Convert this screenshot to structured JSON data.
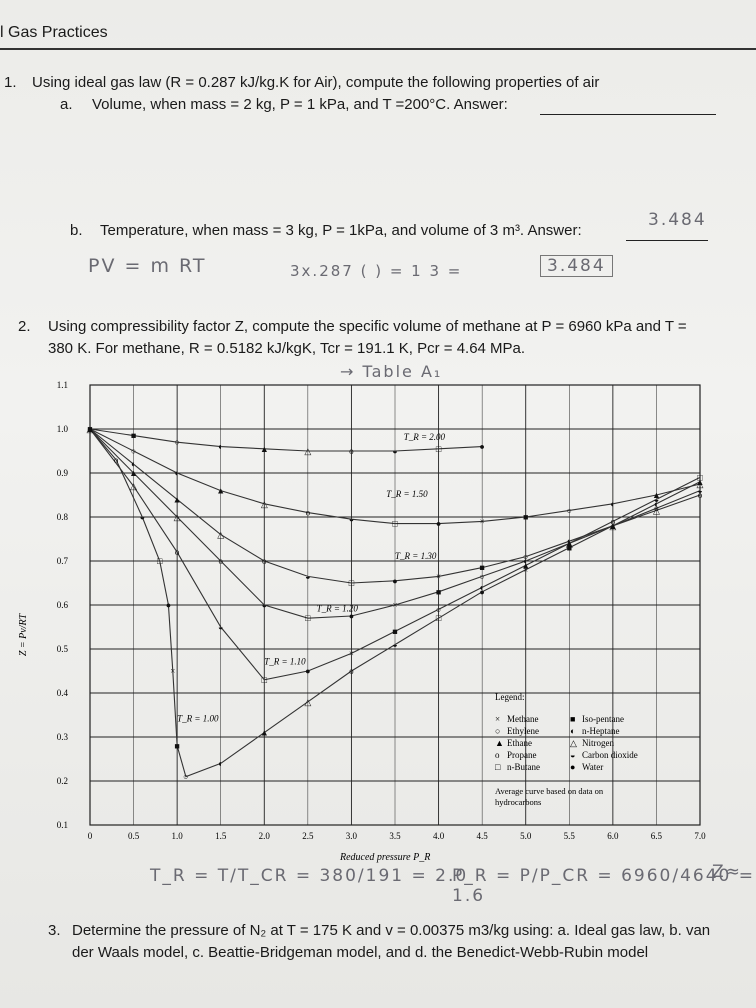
{
  "header": {
    "title": "l Gas Practices"
  },
  "q1": {
    "number": "1.",
    "text": "Using ideal gas law (R = 0.287 kJ/kg.K for Air), compute the following properties of air",
    "a": {
      "label": "a.",
      "text": "Volume, when mass = 2 kg, P = 1 kPa, and T =200°C. Answer:"
    },
    "b": {
      "label": "b.",
      "text": "Temperature, when mass = 3 kg, P = 1kPa, and volume of 3 m³. Answer:",
      "answer_handwritten": "3.484"
    },
    "work": {
      "line1": "PV = m RT",
      "line2": "3x.287 (   ) = 1 3 =",
      "boxed": "3.484"
    }
  },
  "q2": {
    "number": "2.",
    "line1": "Using compressibility factor Z, compute the specific volume of methane at P = 6960 kPa and T =",
    "line2": "380 K. For methane, R = 0.5182 kJ/kgK, Tcr = 191.1 K, Pcr = 4.64 MPa.",
    "note": "→ Table A₁"
  },
  "chart_data": {
    "type": "scatter",
    "xlabel": "Reduced pressure P_R",
    "ylabel": "Z = Pv/RT",
    "xlim": [
      0,
      7.0
    ],
    "ylim": [
      0.1,
      1.1
    ],
    "x_ticks": [
      "0",
      "0.5",
      "1.0",
      "1.5",
      "2.0",
      "2.5",
      "3.0",
      "3.5",
      "4.0",
      "4.5",
      "5.0",
      "5.5",
      "6.0",
      "6.5",
      "7.0"
    ],
    "y_ticks": [
      "1.1",
      "1.0",
      "0.9",
      "0.8",
      "0.7",
      "0.6",
      "0.5",
      "0.4",
      "0.3",
      "0.2",
      "0.1"
    ],
    "grid": true,
    "curve_labels": [
      "T_R = 2.00",
      "T_R = 1.50",
      "T_R = 1.30",
      "T_R = 1.20",
      "T_R = 1.10",
      "T_R = 1.00"
    ],
    "series": [
      {
        "name": "T_R = 2.00",
        "x": [
          0,
          0.5,
          1.0,
          1.5,
          2.0,
          2.5,
          3.0,
          3.5,
          4.0,
          4.5
        ],
        "y": [
          1.0,
          0.985,
          0.97,
          0.96,
          0.955,
          0.95,
          0.95,
          0.95,
          0.955,
          0.96
        ]
      },
      {
        "name": "T_R = 1.50",
        "x": [
          0,
          0.5,
          1.0,
          1.5,
          2.0,
          2.5,
          3.0,
          3.5,
          4.0,
          4.5,
          5.0,
          5.5,
          6.0,
          6.5,
          7.0
        ],
        "y": [
          1.0,
          0.95,
          0.9,
          0.86,
          0.83,
          0.81,
          0.795,
          0.785,
          0.785,
          0.79,
          0.8,
          0.815,
          0.83,
          0.85,
          0.875
        ]
      },
      {
        "name": "T_R = 1.30",
        "x": [
          0,
          0.5,
          1.0,
          1.5,
          2.0,
          2.5,
          3.0,
          3.5,
          4.0,
          4.5,
          5.0,
          5.5,
          6.0,
          6.5,
          7.0
        ],
        "y": [
          1.0,
          0.92,
          0.84,
          0.76,
          0.7,
          0.665,
          0.65,
          0.655,
          0.665,
          0.685,
          0.71,
          0.745,
          0.78,
          0.815,
          0.85
        ]
      },
      {
        "name": "T_R = 1.20",
        "x": [
          0,
          0.5,
          1.0,
          1.5,
          2.0,
          2.5,
          3.0,
          3.5,
          4.0,
          4.5,
          5.0,
          5.5,
          6.0,
          6.5,
          7.0
        ],
        "y": [
          1.0,
          0.9,
          0.8,
          0.7,
          0.6,
          0.57,
          0.575,
          0.6,
          0.63,
          0.665,
          0.7,
          0.74,
          0.78,
          0.82,
          0.86
        ]
      },
      {
        "name": "T_R = 1.10",
        "x": [
          0,
          0.5,
          1.0,
          1.5,
          2.0,
          2.5,
          3.0,
          3.5,
          4.0,
          4.5,
          5.0,
          5.5,
          6.0,
          6.5,
          7.0
        ],
        "y": [
          1.0,
          0.87,
          0.72,
          0.55,
          0.43,
          0.45,
          0.49,
          0.54,
          0.59,
          0.64,
          0.69,
          0.74,
          0.79,
          0.84,
          0.89
        ]
      },
      {
        "name": "T_R = 1.00",
        "x": [
          0,
          0.3,
          0.6,
          0.8,
          0.9,
          0.95,
          1.0,
          1.1,
          1.5,
          2.0,
          2.5,
          3.0,
          3.5,
          4.0,
          4.5,
          5.0,
          5.5,
          6.0,
          6.5,
          7.0
        ],
        "y": [
          1.0,
          0.93,
          0.8,
          0.7,
          0.6,
          0.45,
          0.28,
          0.21,
          0.24,
          0.31,
          0.38,
          0.45,
          0.51,
          0.57,
          0.63,
          0.68,
          0.73,
          0.78,
          0.83,
          0.88
        ]
      }
    ],
    "legend": {
      "title": "Legend:",
      "items": [
        {
          "symbol": "×",
          "label": "Methane"
        },
        {
          "symbol": "■",
          "label": "Iso-pentane"
        },
        {
          "symbol": "○",
          "label": "Ethylene"
        },
        {
          "symbol": "◐",
          "label": "n-Heptane"
        },
        {
          "symbol": "▲",
          "label": "Ethane"
        },
        {
          "symbol": "△",
          "label": "Nitrogen"
        },
        {
          "symbol": "o",
          "label": "Propane"
        },
        {
          "symbol": "◒",
          "label": "Carbon dioxide"
        },
        {
          "symbol": "□",
          "label": "n-Butane"
        },
        {
          "symbol": "●",
          "label": "Water"
        }
      ],
      "footnote_line1": "Average curve based on data on",
      "footnote_line2": "hydrocarbons"
    },
    "handwritten_note": "Table A₁"
  },
  "work2": {
    "tr_line": "T_R = T/T_CR = 380/191 = 2.0",
    "pr_line": "P_R = P/P_CR = 6960/4640 = 1.6",
    "z_note": "Z≈"
  },
  "q3": {
    "number": "3.",
    "line1": "Determine the pressure of N₂ at T = 175 K and v = 0.00375 m3/kg using: a. Ideal gas law, b. van",
    "line2": "der Waals model, c. Beattie-Bridgeman model, and d. the Benedict-Webb-Rubin model"
  }
}
